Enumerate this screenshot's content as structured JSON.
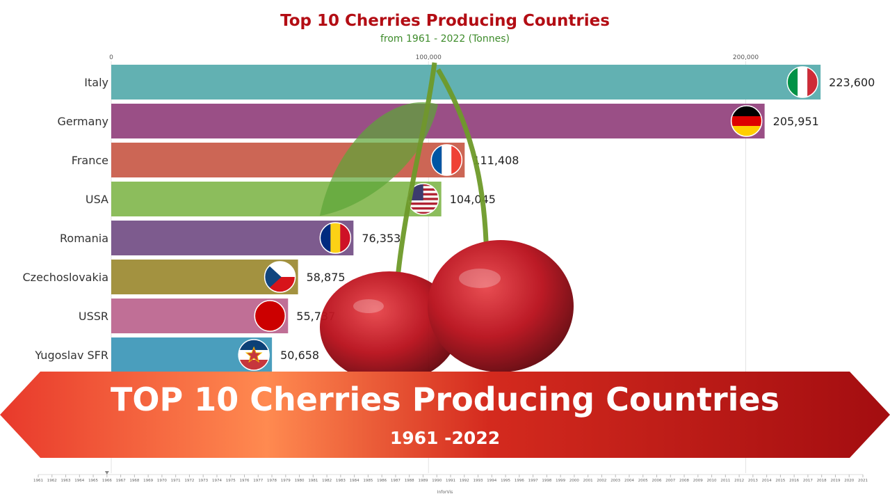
{
  "chart_data": {
    "type": "bar",
    "orientation": "horizontal",
    "title": "Top 10 Cherries Producing Countries",
    "subtitle": "from 1961 - 2022 (Tonnes)",
    "x_ticks": [
      0,
      100000,
      200000
    ],
    "x_tick_labels": [
      "0",
      "100,000",
      "200,000"
    ],
    "xlim": [
      0,
      224000
    ],
    "grid": true,
    "categories": [
      "Italy",
      "Germany",
      "France",
      "USA",
      "Romania",
      "Czechoslovakia",
      "USSR",
      "Yugoslav SFR"
    ],
    "values": [
      223600,
      205951,
      111408,
      104045,
      76353,
      58875,
      55737,
      50658
    ],
    "value_labels": [
      "223,600",
      "205,951",
      "111,408",
      "104,045",
      "76,353",
      "58,875",
      "55,737",
      "50,658"
    ],
    "colors": [
      "#62b1b2",
      "#9a4f86",
      "#cc6655",
      "#8cbd5c",
      "#7d5b8e",
      "#a39240",
      "#c06f96",
      "#4a9ebd"
    ],
    "flags": [
      "italy-flag",
      "germany-flag",
      "france-flag",
      "usa-flag",
      "romania-flag",
      "czechoslovakia-flag",
      "ussr-flag",
      "yugoslavia-flag"
    ]
  },
  "banner": {
    "title": "TOP 10 Cherries Producing Countries",
    "subtitle": "1961 -2022"
  },
  "timeline": {
    "years": [
      "1961",
      "1962",
      "1963",
      "1964",
      "1965",
      "1966",
      "1967",
      "1968",
      "1969",
      "1970",
      "1971",
      "1972",
      "1973",
      "1974",
      "1975",
      "1976",
      "1977",
      "1978",
      "1979",
      "1980",
      "1981",
      "1982",
      "1983",
      "1984",
      "1985",
      "1986",
      "1987",
      "1988",
      "1989",
      "1990",
      "1991",
      "1992",
      "1993",
      "1994",
      "1995",
      "1996",
      "1997",
      "1998",
      "1999",
      "2000",
      "2001",
      "2002",
      "2003",
      "2004",
      "2005",
      "2006",
      "2007",
      "2008",
      "2009",
      "2010",
      "2011",
      "2012",
      "2013",
      "2014",
      "2015",
      "2016",
      "2017",
      "2018",
      "2019",
      "2020",
      "2021"
    ],
    "current_year": "1966"
  },
  "footer": {
    "credit": "InforVis"
  },
  "colors": {
    "title": "#b30d14",
    "subtitle": "#3d8b2a",
    "banner_start": "#e8392b",
    "banner_end": "#a30d10"
  }
}
